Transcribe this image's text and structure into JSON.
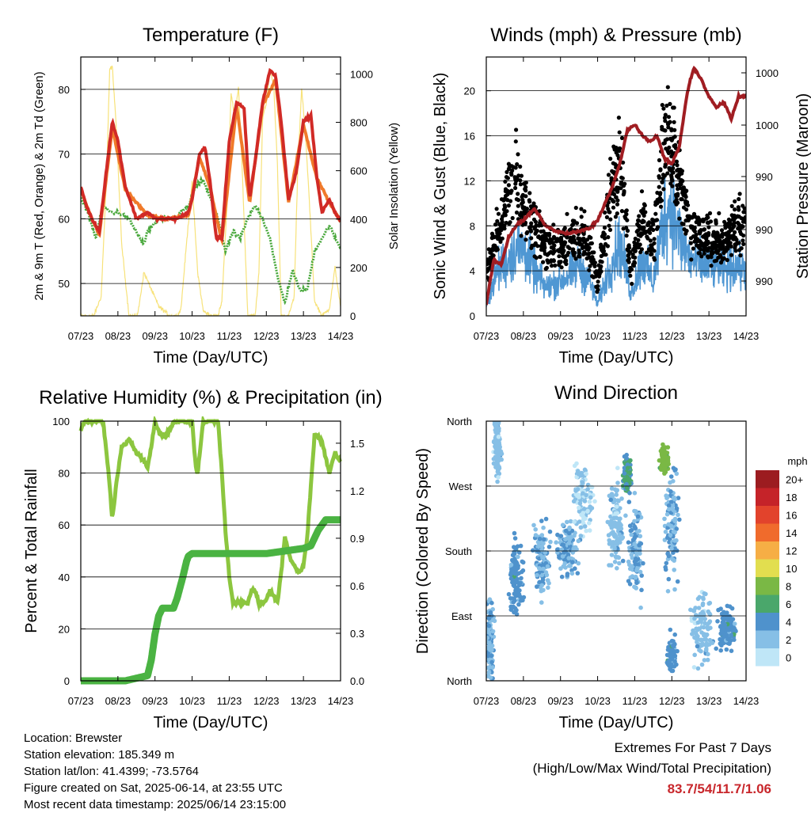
{
  "chart_data": [
    {
      "type": "line",
      "title": "Temperature (F)",
      "xlabel": "Time (Day/UTC)",
      "ylabel": "2m & 9m T (Red, Orange) & 2m Td (Green)",
      "ylabel_right": "Solar Insolation (Yellow)",
      "x_ticks": [
        "07/23",
        "08/23",
        "09/23",
        "10/23",
        "11/23",
        "12/23",
        "13/23",
        "14/23"
      ],
      "ylim": [
        45,
        85
      ],
      "y_ticks": [
        50,
        60,
        70,
        80
      ],
      "ylim_right": [
        0,
        1070
      ],
      "y_ticks_right": [
        0,
        200,
        400,
        600,
        800,
        1000
      ],
      "grid": "horizontal",
      "series": [
        {
          "name": "2m T",
          "color": "#d12a26",
          "x": [
            0,
            0.15,
            0.3,
            0.5,
            0.7,
            0.85,
            1.0,
            1.2,
            1.5,
            1.8,
            2.0,
            2.3,
            2.6,
            2.9,
            3.0,
            3.2,
            3.35,
            3.5,
            3.65,
            3.8,
            4.0,
            4.2,
            4.4,
            4.55,
            4.7,
            4.9,
            5.1,
            5.25,
            5.4,
            5.6,
            5.8,
            6.0,
            6.2,
            6.35,
            6.5,
            6.7,
            6.85,
            7.0
          ],
          "y": [
            65,
            62,
            60,
            58,
            68,
            75,
            72,
            65,
            60,
            61,
            60,
            60,
            60,
            61,
            63,
            70,
            71,
            65,
            57,
            57,
            72,
            78,
            77,
            63,
            69,
            78,
            83,
            82,
            75,
            63,
            67,
            75,
            76,
            67,
            61,
            63,
            61,
            59.5
          ]
        },
        {
          "name": "9m T",
          "color": "#f07a2a",
          "x": [
            0,
            0.3,
            0.5,
            0.85,
            1.2,
            1.8,
            2.3,
            2.9,
            3.2,
            3.5,
            3.8,
            4.2,
            4.55,
            4.9,
            5.25,
            5.6,
            6.0,
            6.35,
            6.7,
            7.0
          ],
          "y": [
            64.5,
            60,
            57.5,
            74,
            64.5,
            60.5,
            60,
            60.5,
            69.5,
            64.5,
            56.5,
            77.5,
            62.5,
            77.5,
            81.5,
            62.5,
            74.5,
            66.5,
            62.5,
            59.5
          ]
        },
        {
          "name": "2m Td",
          "color": "#49a83c",
          "x": [
            0,
            0.2,
            0.4,
            0.6,
            0.8,
            1.0,
            1.3,
            1.5,
            1.7,
            1.8,
            2.1,
            2.5,
            2.9,
            3.1,
            3.3,
            3.5,
            3.7,
            3.9,
            4.1,
            4.3,
            4.5,
            4.7,
            4.9,
            5.1,
            5.3,
            5.5,
            5.7,
            5.9,
            6.1,
            6.3,
            6.5,
            6.7,
            6.85,
            7.0
          ],
          "y": [
            63,
            61,
            57,
            62,
            61,
            61,
            60,
            58,
            56,
            58,
            60,
            60,
            62,
            65,
            66,
            63,
            60,
            55,
            58,
            57,
            60,
            62,
            60,
            57,
            51,
            47,
            52,
            49,
            49,
            55,
            57,
            59,
            57,
            55.5
          ]
        },
        {
          "name": "Solar Insolation",
          "color": "#f7e27a",
          "axis": "right",
          "x": [
            0,
            0.35,
            0.55,
            0.7,
            0.78,
            0.85,
            0.95,
            1.1,
            1.3,
            1.5,
            1.55,
            1.7,
            1.9,
            2.1,
            2.4,
            2.6,
            2.7,
            2.85,
            3.0,
            3.15,
            3.3,
            3.5,
            3.7,
            3.8,
            3.95,
            4.05,
            4.15,
            4.25,
            4.35,
            4.5,
            4.7,
            4.8,
            4.9,
            5.0,
            5.1,
            5.2,
            5.3,
            5.4,
            5.6,
            5.75,
            5.85,
            5.95,
            6.05,
            6.15,
            6.3,
            6.5,
            6.7,
            6.85,
            7.0
          ],
          "y": [
            0,
            0,
            80,
            600,
            1020,
            1030,
            800,
            300,
            0,
            0,
            20,
            180,
            110,
            40,
            0,
            0,
            30,
            300,
            550,
            180,
            20,
            0,
            0,
            60,
            480,
            920,
            820,
            950,
            600,
            0,
            0,
            180,
            820,
            880,
            1020,
            950,
            620,
            0,
            0,
            80,
            620,
            940,
            760,
            500,
            60,
            0,
            30,
            200,
            40
          ]
        }
      ]
    },
    {
      "type": "line",
      "title": "Winds (mph) & Pressure (mb)",
      "xlabel": "Time (Day/UTC)",
      "ylabel": "Sonic Wind & Gust (Blue, Black)",
      "ylabel_right": "Station Pressure (Maroon)",
      "x_ticks": [
        "07/23",
        "08/23",
        "09/23",
        "10/23",
        "11/23",
        "12/23",
        "13/23",
        "14/23"
      ],
      "ylim": [
        0,
        23
      ],
      "y_ticks": [
        0,
        4,
        8,
        12,
        16,
        20
      ],
      "y_ticks_right": [
        "990",
        "990",
        "990",
        "990",
        "1000",
        "1000"
      ],
      "grid": "horizontal",
      "series": [
        {
          "name": "Sonic Wind",
          "color": "#4f97d3",
          "x": [
            0,
            0.3,
            0.6,
            0.8,
            1.0,
            1.3,
            1.6,
            1.9,
            2.2,
            2.5,
            2.8,
            3.0,
            3.3,
            3.6,
            3.9,
            4.2,
            4.5,
            4.8,
            5.0,
            5.2,
            5.5,
            5.8,
            6.1,
            6.4,
            6.7,
            7.0
          ],
          "y": [
            1,
            4,
            5,
            6,
            6,
            4,
            2.5,
            3,
            3.5,
            4.5,
            3,
            1,
            4,
            6.5,
            2,
            5,
            3,
            9,
            10,
            7,
            5,
            4.5,
            4.5,
            4,
            4.5,
            4
          ]
        },
        {
          "name": "Gust",
          "color": "#000000",
          "x": [
            0,
            0.3,
            0.6,
            0.8,
            1.0,
            1.3,
            1.6,
            1.9,
            2.2,
            2.5,
            2.8,
            3.0,
            3.3,
            3.6,
            3.9,
            4.2,
            4.5,
            4.8,
            5.0,
            5.2,
            5.5,
            5.8,
            6.1,
            6.4,
            6.7,
            7.0
          ],
          "y": [
            4,
            7,
            11,
            13,
            10,
            8,
            6,
            6,
            6.5,
            7.5,
            6,
            3,
            10,
            14,
            4,
            9,
            6,
            16,
            15,
            12,
            8,
            7,
            7,
            6.5,
            8,
            8
          ]
        },
        {
          "name": "Station Pressure",
          "color": "#a01d22",
          "x": [
            0,
            0.2,
            0.4,
            0.6,
            0.8,
            1.0,
            1.3,
            1.6,
            1.9,
            2.2,
            2.5,
            2.8,
            3.0,
            3.2,
            3.4,
            3.6,
            3.8,
            4.0,
            4.2,
            4.4,
            4.6,
            4.8,
            5.0,
            5.2,
            5.4,
            5.5,
            5.6,
            5.8,
            6.0,
            6.2,
            6.4,
            6.6,
            6.8,
            7.0
          ],
          "y": [
            1,
            5,
            4.5,
            7,
            8,
            8.5,
            9.5,
            8,
            7.5,
            7.3,
            7.5,
            7.8,
            8.5,
            10,
            11.5,
            13.5,
            16.5,
            17,
            16,
            15.5,
            16,
            14,
            13.5,
            15,
            19.5,
            21,
            22,
            21,
            19.5,
            18.5,
            19,
            17.5,
            19.5,
            19.5
          ]
        }
      ]
    },
    {
      "type": "line",
      "title": "Relative Humidity (%) & Precipitation (in)",
      "xlabel": "Time (Day/UTC)",
      "ylabel": "Percent & Total Rainfall",
      "x_ticks": [
        "07/23",
        "08/23",
        "09/23",
        "10/23",
        "11/23",
        "12/23",
        "13/23",
        "14/23"
      ],
      "ylim": [
        0,
        100
      ],
      "y_ticks": [
        0,
        20,
        40,
        60,
        80,
        100
      ],
      "y_ticks_right": [
        "0.0",
        "0.3",
        "0.6",
        "0.9",
        "1.2",
        "1.5"
      ],
      "grid": "horizontal",
      "series": [
        {
          "name": "Relative Humidity",
          "color": "#8cc63f",
          "x": [
            0,
            0.1,
            0.3,
            0.6,
            0.75,
            0.85,
            0.95,
            1.1,
            1.3,
            1.5,
            1.7,
            1.8,
            1.9,
            2.0,
            2.1,
            2.3,
            2.5,
            2.8,
            3.0,
            3.1,
            3.15,
            3.3,
            3.5,
            3.7,
            3.8,
            3.9,
            4.0,
            4.1,
            4.3,
            4.5,
            4.6,
            4.7,
            4.8,
            4.95,
            5.1,
            5.3,
            5.5,
            5.7,
            5.9,
            6.0,
            6.1,
            6.3,
            6.5,
            6.7,
            6.85,
            7.0
          ],
          "y": [
            96,
            100,
            100,
            100,
            80,
            62,
            75,
            90,
            93,
            88,
            85,
            82,
            90,
            100,
            96,
            94,
            100,
            100,
            100,
            82,
            80,
            100,
            100,
            100,
            80,
            58,
            40,
            30,
            30,
            30,
            35,
            35,
            30,
            30,
            35,
            30,
            55,
            45,
            42,
            45,
            55,
            95,
            92,
            80,
            88,
            84
          ]
        },
        {
          "name": "Total Precipitation",
          "color": "#4ab342",
          "x": [
            0,
            1.0,
            1.2,
            1.5,
            1.8,
            1.9,
            2.0,
            2.1,
            2.2,
            2.5,
            2.6,
            2.75,
            2.85,
            2.9,
            3.0,
            5.0,
            6.0,
            6.2,
            6.4,
            6.6,
            7.0
          ],
          "y": [
            0,
            0,
            0,
            1,
            2,
            8,
            18,
            25,
            28,
            28,
            32,
            40,
            46,
            48,
            49,
            49,
            51,
            52,
            58,
            62,
            62
          ]
        }
      ]
    },
    {
      "type": "scatter",
      "title": "Wind Direction",
      "xlabel": "Time (Day/UTC)",
      "ylabel": "Direction (Colored By Speed)",
      "x_ticks": [
        "07/23",
        "08/23",
        "09/23",
        "10/23",
        "11/23",
        "12/23",
        "13/23",
        "14/23"
      ],
      "y_ticks": [
        "North",
        "East",
        "South",
        "West",
        "North"
      ],
      "legend_title": "mph",
      "legend_labels": [
        "0",
        "2",
        "4",
        "6",
        "8",
        "10",
        "12",
        "14",
        "16",
        "18",
        "20+"
      ],
      "legend_colors": [
        "#bfe6f7",
        "#86bfe6",
        "#4f92cc",
        "#4aa76b",
        "#7ab845",
        "#e2de4f",
        "#f6ae45",
        "#f06b2c",
        "#e2432c",
        "#c52329",
        "#9c1c20"
      ],
      "legend_placement": "right",
      "grid": "horizontal",
      "clusters": [
        {
          "x": 0.1,
          "y": 0.15,
          "spread_x": 0.15,
          "spread_y": 0.25,
          "speed": 3
        },
        {
          "x": 0.3,
          "y": 0.9,
          "spread_x": 0.15,
          "spread_y": 0.15,
          "speed": 2
        },
        {
          "x": 0.8,
          "y": 0.4,
          "spread_x": 0.25,
          "spread_y": 0.2,
          "speed": 4
        },
        {
          "x": 1.5,
          "y": 0.45,
          "spread_x": 0.3,
          "spread_y": 0.2,
          "speed": 3
        },
        {
          "x": 2.2,
          "y": 0.5,
          "spread_x": 0.4,
          "spread_y": 0.15,
          "speed": 3
        },
        {
          "x": 2.6,
          "y": 0.7,
          "spread_x": 0.4,
          "spread_y": 0.2,
          "speed": 1
        },
        {
          "x": 3.5,
          "y": 0.6,
          "spread_x": 0.3,
          "spread_y": 0.25,
          "speed": 2
        },
        {
          "x": 3.8,
          "y": 0.8,
          "spread_x": 0.15,
          "spread_y": 0.1,
          "speed": 5
        },
        {
          "x": 4.0,
          "y": 0.5,
          "spread_x": 0.25,
          "spread_y": 0.25,
          "speed": 3
        },
        {
          "x": 4.8,
          "y": 0.85,
          "spread_x": 0.15,
          "spread_y": 0.07,
          "speed": 8
        },
        {
          "x": 5.0,
          "y": 0.6,
          "spread_x": 0.3,
          "spread_y": 0.3,
          "speed": 3
        },
        {
          "x": 5.0,
          "y": 0.1,
          "spread_x": 0.15,
          "spread_y": 0.1,
          "speed": 4
        },
        {
          "x": 5.8,
          "y": 0.2,
          "spread_x": 0.4,
          "spread_y": 0.2,
          "speed": 2
        },
        {
          "x": 6.5,
          "y": 0.2,
          "spread_x": 0.35,
          "spread_y": 0.12,
          "speed": 4
        }
      ]
    }
  ],
  "station_info": {
    "location": "Location: Brewster",
    "elevation": "Station elevation: 185.349 m",
    "latlon": "Station lat/lon: 41.4399; -73.5764",
    "created": "Figure created on Sat, 2025-06-14, at 23:55 UTC",
    "recent": "Most recent data timestamp: 2025/06/14 23:15:00"
  },
  "extremes": {
    "line1": "Extremes For Past 7 Days",
    "line2": "(High/Low/Max Wind/Total Precipitation)",
    "values": "83.7/54/11.7/1.06"
  }
}
